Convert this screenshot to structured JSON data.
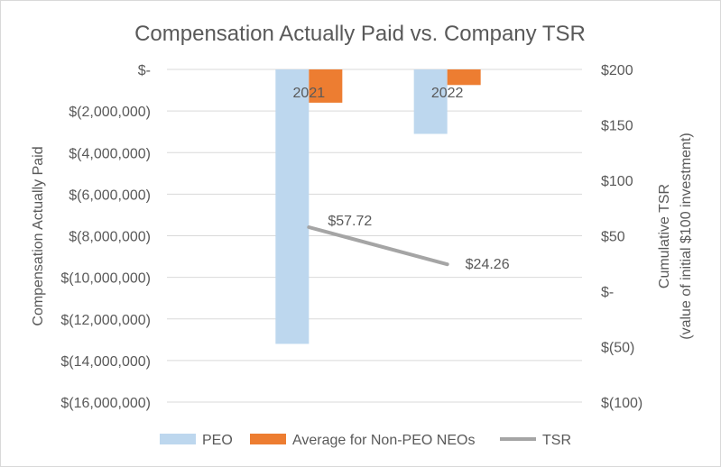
{
  "chart_data": {
    "type": "bar",
    "title": "Compensation Actually Paid vs. Company TSR",
    "categories": [
      "2021",
      "2022"
    ],
    "series": [
      {
        "name": "PEO",
        "kind": "bar",
        "axis": "left",
        "color": "#bdd7ee",
        "values": [
          -13200000,
          -3100000
        ]
      },
      {
        "name": "Average for Non-PEO NEOs",
        "kind": "bar",
        "axis": "left",
        "color": "#ed7d31",
        "values": [
          -1600000,
          -750000
        ]
      },
      {
        "name": "TSR",
        "kind": "line",
        "axis": "right",
        "color": "#a5a5a5",
        "values": [
          57.72,
          24.26
        ],
        "labels": [
          "$57.72",
          "$24.26"
        ]
      }
    ],
    "ylabel": "Compensation Actually Paid",
    "ylim": [
      -16000000,
      0
    ],
    "y_ticks": [
      0,
      -2000000,
      -4000000,
      -6000000,
      -8000000,
      -10000000,
      -12000000,
      -14000000,
      -16000000
    ],
    "y_tick_labels": [
      "$-",
      "$(2,000,000)",
      "$(4,000,000)",
      "$(6,000,000)",
      "$(8,000,000)",
      "$(10,000,000)",
      "$(12,000,000)",
      "$(14,000,000)",
      "$(16,000,000)"
    ],
    "y2label_line1": "Cumulative TSR",
    "y2label_line2": "(value of initial $100 investment)",
    "y2lim": [
      -100,
      200
    ],
    "y2_ticks": [
      200,
      150,
      100,
      50,
      0,
      -50,
      -100
    ],
    "y2_tick_labels": [
      "$200",
      "$150",
      "$100",
      "$50",
      "$-",
      "$(50)",
      "$(100)"
    ],
    "grid": true,
    "legend_position": "bottom"
  }
}
